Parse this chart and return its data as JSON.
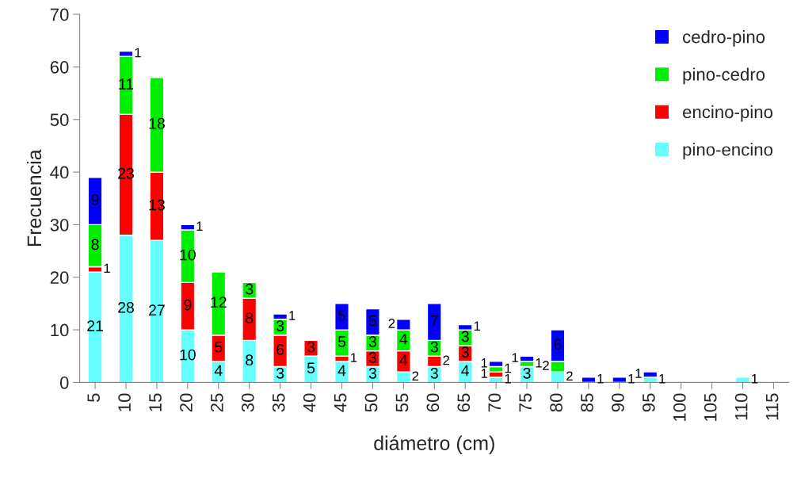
{
  "chart_data": {
    "type": "bar",
    "stacked": true,
    "xlabel": "diámetro (cm)",
    "ylabel": "Frecuencia",
    "categories": [
      "5",
      "10",
      "15",
      "20",
      "25",
      "30",
      "35",
      "40",
      "45",
      "50",
      "55",
      "60",
      "65",
      "70",
      "75",
      "80",
      "85",
      "90",
      "95",
      "100",
      "105",
      "110",
      "115"
    ],
    "series": [
      {
        "name": "pino-encino",
        "color": "#66ffff",
        "values": [
          21,
          28,
          27,
          10,
          4,
          8,
          3,
          5,
          4,
          3,
          2,
          3,
          4,
          1,
          3,
          2,
          null,
          null,
          1,
          null,
          null,
          1,
          null
        ]
      },
      {
        "name": "encino-pino",
        "color": "#ff0000",
        "values": [
          1,
          23,
          13,
          9,
          5,
          8,
          6,
          3,
          1,
          3,
          4,
          2,
          3,
          1,
          null,
          null,
          null,
          null,
          null,
          null,
          null,
          null,
          null
        ]
      },
      {
        "name": "pino-cedro",
        "color": "#00ee00",
        "values": [
          8,
          11,
          18,
          10,
          12,
          3,
          3,
          null,
          5,
          3,
          4,
          3,
          3,
          1,
          1,
          2,
          null,
          null,
          null,
          null,
          null,
          null,
          null
        ]
      },
      {
        "name": "cedro-pino",
        "color": "#0000ff",
        "values": [
          9,
          1,
          null,
          1,
          null,
          null,
          1,
          null,
          5,
          5,
          2,
          7,
          1,
          1,
          1,
          6,
          1,
          1,
          1,
          null,
          null,
          null,
          null
        ]
      }
    ],
    "ylim": [
      0,
      70
    ],
    "yticks": [
      0,
      10,
      20,
      30,
      40,
      50,
      60,
      70
    ],
    "data_labels": true,
    "legend": "top right",
    "grid": false
  }
}
